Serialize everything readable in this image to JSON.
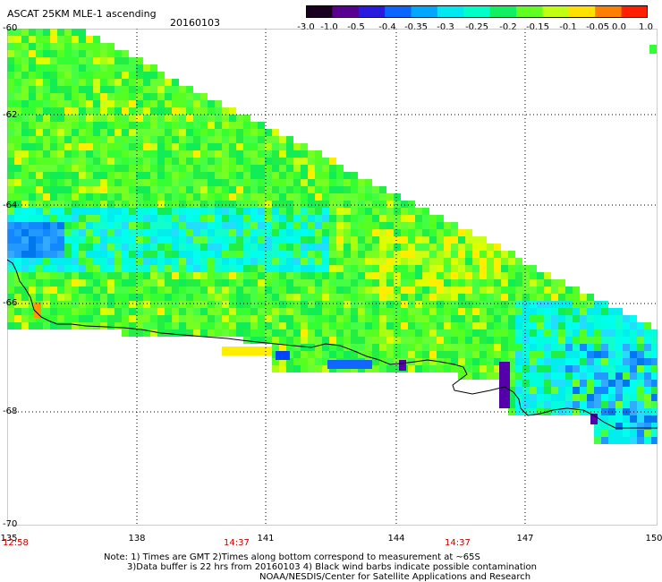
{
  "header": {
    "title": "ASCAT 25KM MLE-1 ascending",
    "date": "20160103"
  },
  "colorbar": {
    "ticks": [
      "-3.0",
      "-1.0",
      "-0.5",
      "-0.4",
      "-0.35",
      "-0.3",
      "-0.25",
      "-0.2",
      "-0.15",
      "-0.1",
      "-0.05",
      "0.0",
      "1.0"
    ],
    "colors": [
      "#1a0020",
      "#5a0090",
      "#2a1ae0",
      "#0a66ff",
      "#00a8ff",
      "#00e8f0",
      "#00ffc8",
      "#10f060",
      "#60ff20",
      "#c0ff10",
      "#ffe000",
      "#ff8000",
      "#ff2000"
    ]
  },
  "axes": {
    "lat_labels": [
      "-60",
      "-62",
      "-64",
      "-66",
      "-68",
      "-70"
    ],
    "lon_labels": [
      "135",
      "138",
      "141",
      "144",
      "147",
      "150"
    ],
    "lat_range": [
      -70,
      -60
    ],
    "lon_range": [
      135,
      150
    ]
  },
  "time_labels": [
    "12:58",
    "14:37",
    "14:37"
  ],
  "notes": {
    "line1": "Note: 1) Times are GMT 2)Times along bottom correspond to measurement at ~65S",
    "line2": "3)Data buffer is 22 hrs from 20160103 4) Black wind barbs indicate possible contamination",
    "line3": "NOAA/NESDIS/Center for Satellite Applications and Research"
  }
}
